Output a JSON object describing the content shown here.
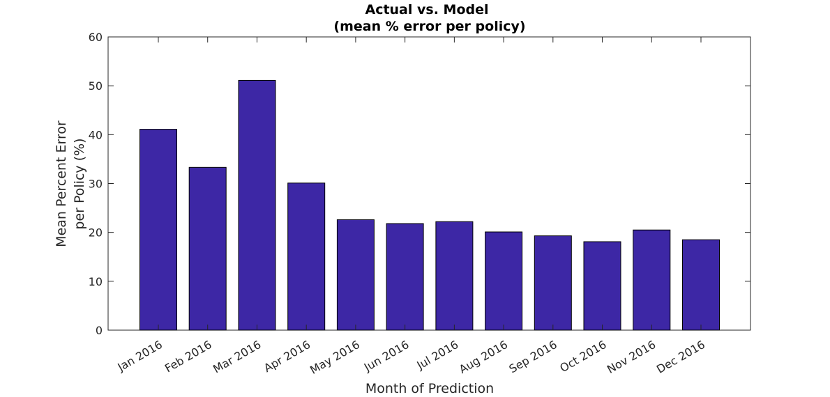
{
  "chart_data": {
    "type": "bar",
    "title": "Actual vs. Model",
    "subtitle": "(mean % error per policy)",
    "xlabel": "Month of Prediction",
    "ylabel_line1": "Mean Percent Error",
    "ylabel_line2": "per Policy (%)",
    "categories": [
      "Jan 2016",
      "Feb 2016",
      "Mar 2016",
      "Apr 2016",
      "May 2016",
      "Jun 2016",
      "Jul 2016",
      "Aug 2016",
      "Sep 2016",
      "Oct 2016",
      "Nov 2016",
      "Dec 2016"
    ],
    "values": [
      41.1,
      33.3,
      51.1,
      30.1,
      22.6,
      21.8,
      22.2,
      20.1,
      19.3,
      18.1,
      20.5,
      18.5
    ],
    "ylim": [
      0,
      60
    ],
    "yticks": [
      "0",
      "10",
      "20",
      "30",
      "40",
      "50",
      "60"
    ],
    "bar_color": "#3d27a5",
    "grid": false
  }
}
